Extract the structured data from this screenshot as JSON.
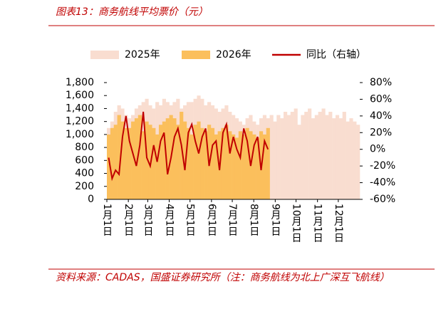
{
  "chart_data": {
    "type": "bar-line",
    "title": "图表13：商务航线平均票价（元）",
    "source": "资料来源：CADAS，国盛证券研究所（注：商务航线为北上广深互飞航线）",
    "xlim": [
      0,
      365
    ],
    "xticks": [
      {
        "value": 0,
        "label": "1月1日"
      },
      {
        "value": 31,
        "label": "2月1日"
      },
      {
        "value": 59,
        "label": "3月1日"
      },
      {
        "value": 90,
        "label": "4月1日"
      },
      {
        "value": 120,
        "label": "5月1日"
      },
      {
        "value": 151,
        "label": "6月1日"
      },
      {
        "value": 181,
        "label": "7月1日"
      },
      {
        "value": 212,
        "label": "8月1日"
      },
      {
        "value": 243,
        "label": "9月1日"
      },
      {
        "value": 273,
        "label": "10月1日"
      },
      {
        "value": 304,
        "label": "11月1日"
      },
      {
        "value": 334,
        "label": "12月1日"
      }
    ],
    "ylim": [
      0,
      1800
    ],
    "yticks": [
      0,
      200,
      400,
      600,
      800,
      {
        "value": 1000,
        "label": "1,000"
      },
      {
        "value": 1200,
        "label": "1,200"
      },
      {
        "value": 1400,
        "label": "1,400"
      },
      {
        "value": 1600,
        "label": "1,600"
      },
      {
        "value": 1800,
        "label": "1,800"
      }
    ],
    "y2lim": [
      -60,
      80
    ],
    "y2ticks": [
      {
        "value": -60,
        "label": "-60%"
      },
      {
        "value": -40,
        "label": "-40%"
      },
      {
        "value": -20,
        "label": "-20%"
      },
      {
        "value": 0,
        "label": "0%"
      },
      {
        "value": 20,
        "label": "20%"
      },
      {
        "value": 40,
        "label": "40%"
      },
      {
        "value": 60,
        "label": "60%"
      },
      {
        "value": 80,
        "label": "80%"
      }
    ],
    "series": [
      {
        "name": "2025年",
        "kind": "bar",
        "color": "#f9ddd0",
        "x": [
          0,
          5,
          10,
          15,
          20,
          25,
          30,
          35,
          40,
          45,
          50,
          55,
          60,
          65,
          70,
          75,
          80,
          85,
          90,
          95,
          100,
          105,
          110,
          115,
          120,
          125,
          130,
          135,
          140,
          145,
          150,
          155,
          160,
          165,
          170,
          175,
          180,
          185,
          190,
          195,
          200,
          205,
          210,
          215,
          220,
          225,
          230,
          235,
          240,
          245,
          250,
          255,
          260,
          265,
          270,
          275,
          280,
          285,
          290,
          295,
          300,
          305,
          310,
          315,
          320,
          325,
          330,
          335,
          340,
          345,
          350,
          355,
          360
        ],
        "values": [
          1100,
          1200,
          1350,
          1450,
          1400,
          1300,
          1250,
          1300,
          1400,
          1450,
          1500,
          1550,
          1450,
          1400,
          1500,
          1450,
          1550,
          1500,
          1450,
          1500,
          1550,
          1400,
          1450,
          1500,
          1500,
          1550,
          1600,
          1550,
          1450,
          1500,
          1450,
          1400,
          1350,
          1400,
          1450,
          1350,
          1300,
          1250,
          1200,
          1150,
          1250,
          1300,
          1200,
          1150,
          1250,
          1300,
          1250,
          1300,
          1200,
          1300,
          1250,
          1350,
          1300,
          1350,
          1400,
          1150,
          1300,
          1350,
          1400,
          1250,
          1300,
          1350,
          1400,
          1300,
          1350,
          1250,
          1300,
          1250,
          1350,
          1200,
          1250,
          1200,
          1150
        ]
      },
      {
        "name": "2026年",
        "kind": "bar",
        "color": "#fbbf5c",
        "x": [
          0,
          5,
          10,
          15,
          20,
          25,
          30,
          35,
          40,
          45,
          50,
          55,
          60,
          65,
          70,
          75,
          80,
          85,
          90,
          95,
          100,
          105,
          110,
          115,
          120,
          125,
          130,
          135,
          140,
          145,
          150,
          155,
          160,
          165,
          170,
          175,
          180,
          185,
          190,
          195,
          200,
          205,
          210,
          215,
          220,
          225,
          230
        ],
        "values": [
          1000,
          1100,
          1150,
          1300,
          1200,
          1100,
          1100,
          1200,
          1250,
          1300,
          1050,
          1200,
          1150,
          1100,
          1000,
          1150,
          1200,
          1250,
          1300,
          1250,
          1150,
          1350,
          1200,
          1100,
          1000,
          1150,
          1200,
          1100,
          1050,
          1150,
          1100,
          1000,
          1050,
          1100,
          1150,
          1050,
          1000,
          950,
          1050,
          1000,
          1100,
          1050,
          1000,
          950,
          1050,
          1000,
          1100
        ]
      },
      {
        "name": "同比（右轴）",
        "kind": "line",
        "axis": "y2",
        "color": "#c00000",
        "x": [
          0,
          5,
          10,
          15,
          20,
          25,
          30,
          35,
          40,
          45,
          50,
          55,
          60,
          65,
          70,
          75,
          80,
          85,
          90,
          95,
          100,
          105,
          110,
          115,
          120,
          125,
          130,
          135,
          140,
          145,
          150,
          155,
          160,
          165,
          170,
          175,
          180,
          185,
          190,
          195,
          200,
          205,
          210,
          215,
          220,
          225,
          230
        ],
        "values": [
          -10,
          -35,
          -25,
          -30,
          15,
          40,
          10,
          -5,
          -20,
          5,
          45,
          -10,
          -20,
          5,
          -15,
          10,
          20,
          -30,
          -10,
          15,
          25,
          5,
          -25,
          20,
          30,
          10,
          -5,
          15,
          25,
          -20,
          5,
          10,
          -25,
          20,
          30,
          -5,
          15,
          0,
          -10,
          25,
          10,
          -20,
          5,
          15,
          -25,
          10,
          0
        ]
      }
    ]
  }
}
